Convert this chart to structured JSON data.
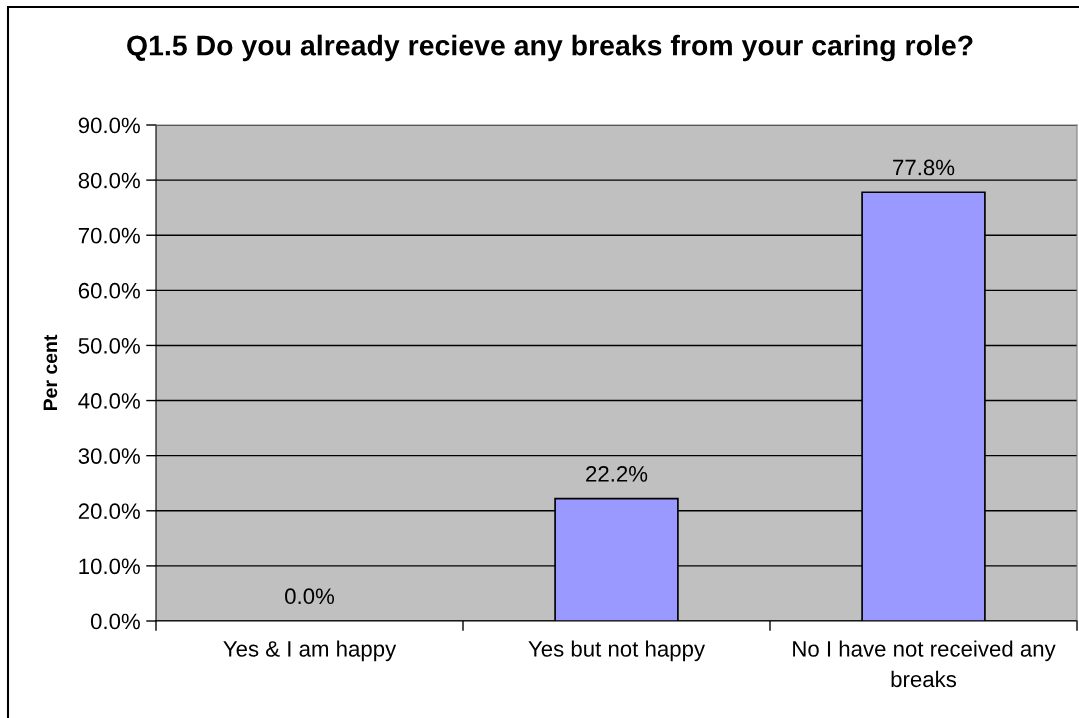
{
  "chart_data": {
    "type": "bar",
    "title": "Q1.5 Do you already recieve any breaks from your caring role?",
    "ylabel": "Per cent",
    "categories": [
      "Yes & I am happy",
      "Yes but not happy",
      "No I have not received any breaks"
    ],
    "values": [
      0.0,
      22.2,
      77.8
    ],
    "value_labels": [
      "0.0%",
      "22.2%",
      "77.8%"
    ],
    "color": "#9999ff",
    "ylim": [
      0,
      90
    ],
    "yticks": [
      {
        "value": 0,
        "label": "0.0%"
      },
      {
        "value": 10,
        "label": "10.0%"
      },
      {
        "value": 20,
        "label": "20.0%"
      },
      {
        "value": 30,
        "label": "30.0%"
      },
      {
        "value": 40,
        "label": "40.0%"
      },
      {
        "value": 50,
        "label": "50.0%"
      },
      {
        "value": 60,
        "label": "60.0%"
      },
      {
        "value": 70,
        "label": "70.0%"
      },
      {
        "value": 80,
        "label": "80.0%"
      },
      {
        "value": 90,
        "label": "90.0%"
      }
    ],
    "grid": "y"
  }
}
